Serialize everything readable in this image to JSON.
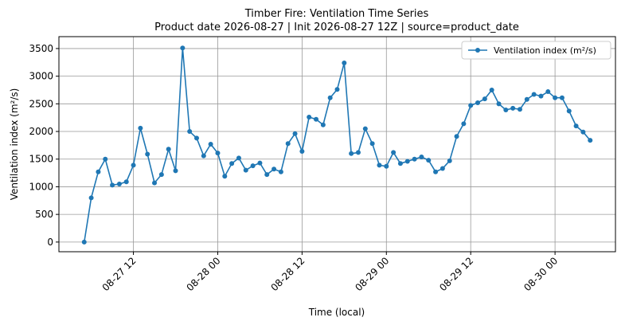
{
  "chart_data": {
    "type": "line",
    "title": "Timber Fire: Ventilation Time Series",
    "subtitle": "Product date 2026-08-27 | Init 2026-08-27 12Z | source=product_date",
    "x_label": "Time (local)",
    "y_label": "Ventilation index (m²/s)",
    "x": [
      "08-27 05",
      "08-27 06",
      "08-27 07",
      "08-27 08",
      "08-27 09",
      "08-27 10",
      "08-27 11",
      "08-27 12",
      "08-27 13",
      "08-27 14",
      "08-27 15",
      "08-27 16",
      "08-27 17",
      "08-27 18",
      "08-27 19",
      "08-27 20",
      "08-27 21",
      "08-27 22",
      "08-27 23",
      "08-28 00",
      "08-28 01",
      "08-28 02",
      "08-28 03",
      "08-28 04",
      "08-28 05",
      "08-28 06",
      "08-28 07",
      "08-28 08",
      "08-28 09",
      "08-28 10",
      "08-28 11",
      "08-28 12",
      "08-28 13",
      "08-28 14",
      "08-28 15",
      "08-28 16",
      "08-28 17",
      "08-28 18",
      "08-28 19",
      "08-28 20",
      "08-28 21",
      "08-28 22",
      "08-28 23",
      "08-29 00",
      "08-29 01",
      "08-29 02",
      "08-29 03",
      "08-29 04",
      "08-29 05",
      "08-29 06",
      "08-29 07",
      "08-29 08",
      "08-29 09",
      "08-29 10",
      "08-29 11",
      "08-29 12",
      "08-29 13",
      "08-29 14",
      "08-29 15",
      "08-29 16",
      "08-29 17",
      "08-29 18",
      "08-29 19",
      "08-29 20",
      "08-29 21",
      "08-29 22",
      "08-29 23",
      "08-30 00",
      "08-30 01",
      "08-30 02",
      "08-30 03",
      "08-30 04",
      "08-30 05"
    ],
    "series": [
      {
        "name": "Ventilation index (m²/s)",
        "color": "#1f77b4",
        "values": [
          0,
          800,
          1270,
          1500,
          1030,
          1050,
          1090,
          1390,
          2060,
          1590,
          1070,
          1220,
          1680,
          1290,
          3510,
          2000,
          1880,
          1560,
          1770,
          1610,
          1190,
          1420,
          1520,
          1300,
          1380,
          1430,
          1220,
          1320,
          1270,
          1780,
          1960,
          1640,
          2260,
          2220,
          2120,
          2610,
          2760,
          3240,
          1600,
          1620,
          2050,
          1780,
          1390,
          1370,
          1620,
          1420,
          1460,
          1500,
          1540,
          1480,
          1270,
          1330,
          1470,
          1910,
          2140,
          2470,
          2520,
          2590,
          2750,
          2500,
          2390,
          2420,
          2400,
          2580,
          2670,
          2640,
          2720,
          2610,
          2610,
          2370,
          2100,
          1990,
          1840
        ]
      }
    ],
    "ylim": [
      -175,
      3715
    ],
    "yticks": [
      0,
      500,
      1000,
      1500,
      2000,
      2500,
      3000,
      3500
    ],
    "xticks": [
      "08-27 12",
      "08-28 00",
      "08-28 12",
      "08-29 00",
      "08-29 12",
      "08-30 00"
    ],
    "grid": true,
    "legend": "upper right"
  }
}
